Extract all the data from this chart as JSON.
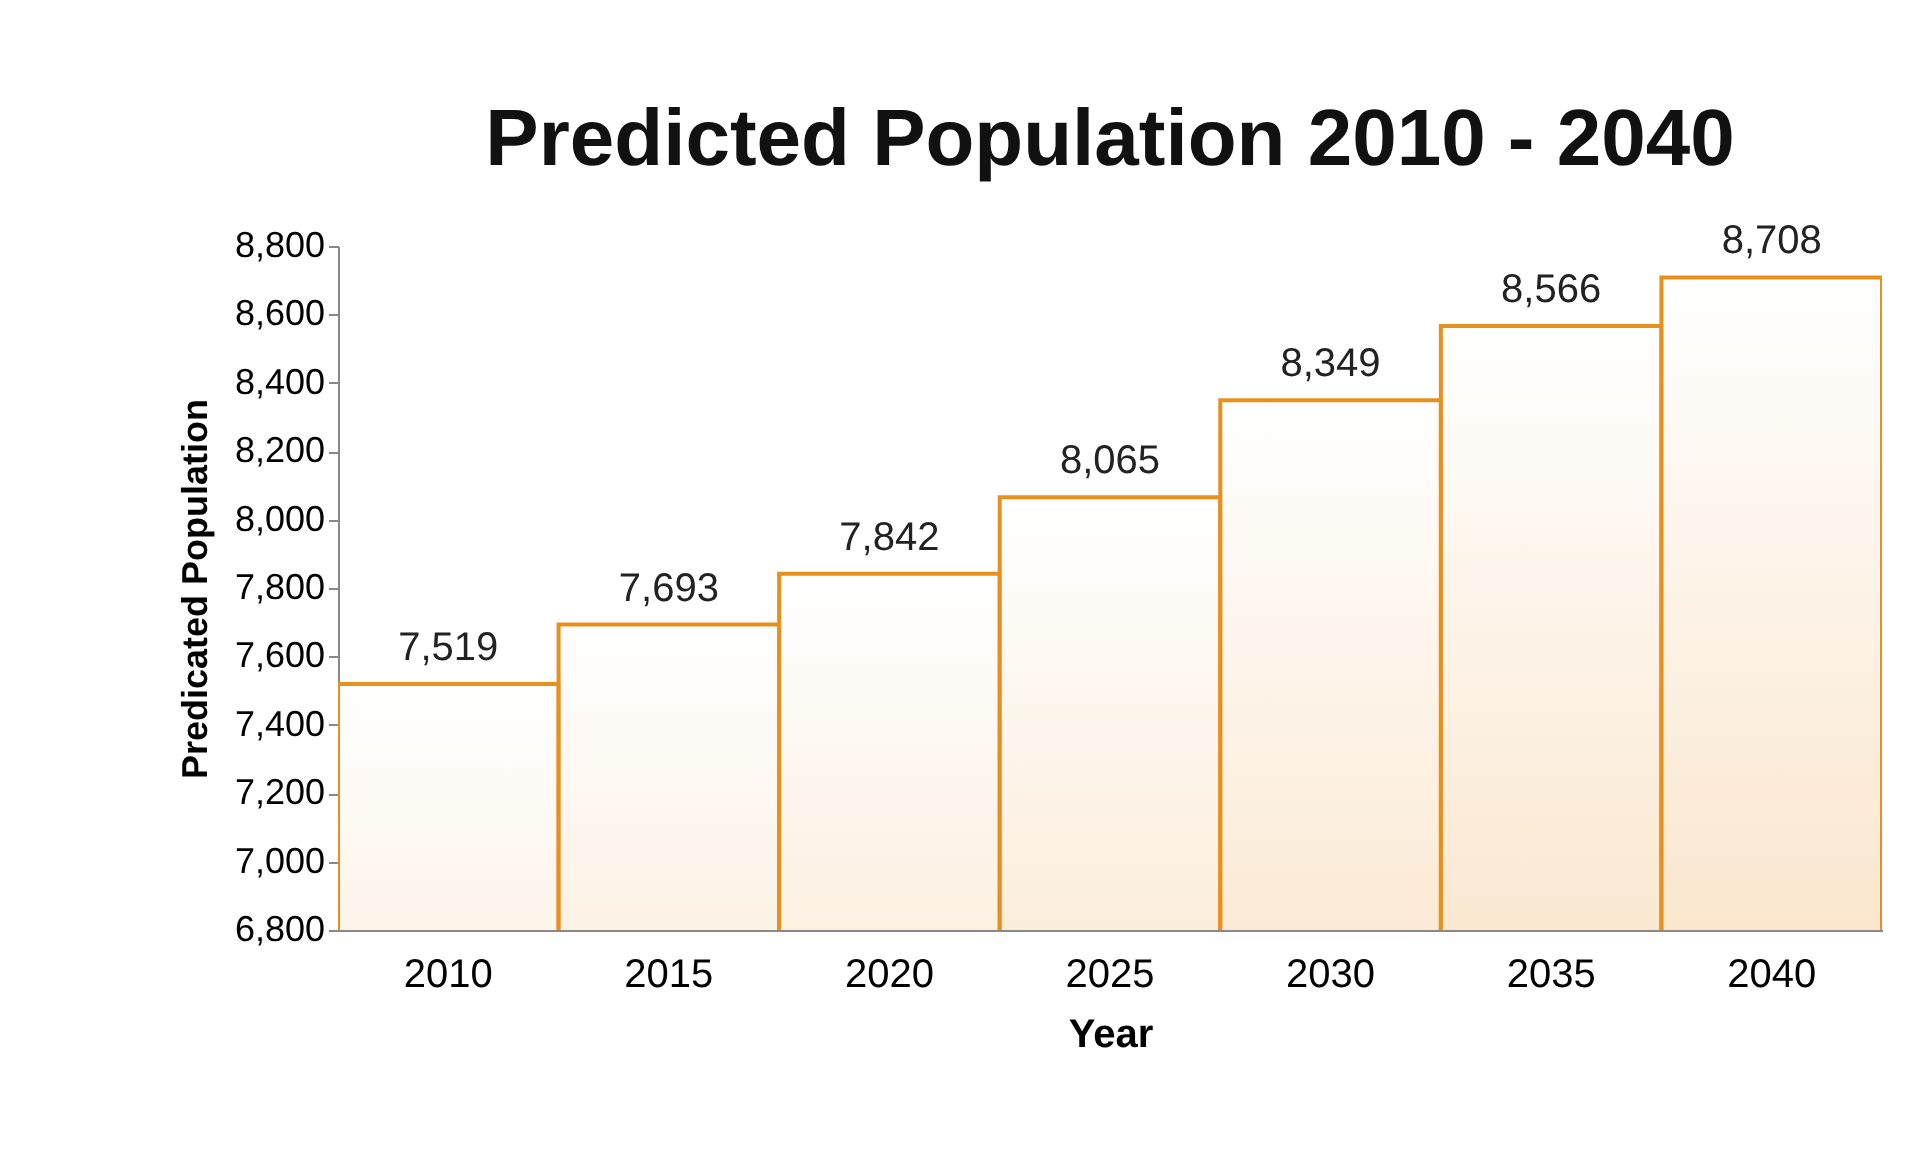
{
  "chart_data": {
    "type": "bar",
    "title": "Predicted Population 2010 - 2040",
    "xlabel": "Year",
    "ylabel": "Predicated Population",
    "categories": [
      "2010",
      "2015",
      "2020",
      "2025",
      "2030",
      "2035",
      "2040"
    ],
    "values": [
      7519,
      7693,
      7842,
      8065,
      8349,
      8566,
      8708
    ],
    "value_labels": [
      "7,519",
      "7,693",
      "7,842",
      "8,065",
      "8,349",
      "8,566",
      "8,708"
    ],
    "color": "#e8901e",
    "ylim": [
      6800,
      8800
    ],
    "yticks": [
      {
        "value": 6800,
        "label": "6,800"
      },
      {
        "value": 7000,
        "label": "7,000"
      },
      {
        "value": 7200,
        "label": "7,200"
      },
      {
        "value": 7400,
        "label": "7,400"
      },
      {
        "value": 7600,
        "label": "7,600"
      },
      {
        "value": 7800,
        "label": "7,800"
      },
      {
        "value": 8000,
        "label": "8,000"
      },
      {
        "value": 8200,
        "label": "8,200"
      },
      {
        "value": 8400,
        "label": "8,400"
      },
      {
        "value": 8600,
        "label": "8,600"
      },
      {
        "value": 8800,
        "label": "8,800"
      }
    ],
    "grid": false
  }
}
